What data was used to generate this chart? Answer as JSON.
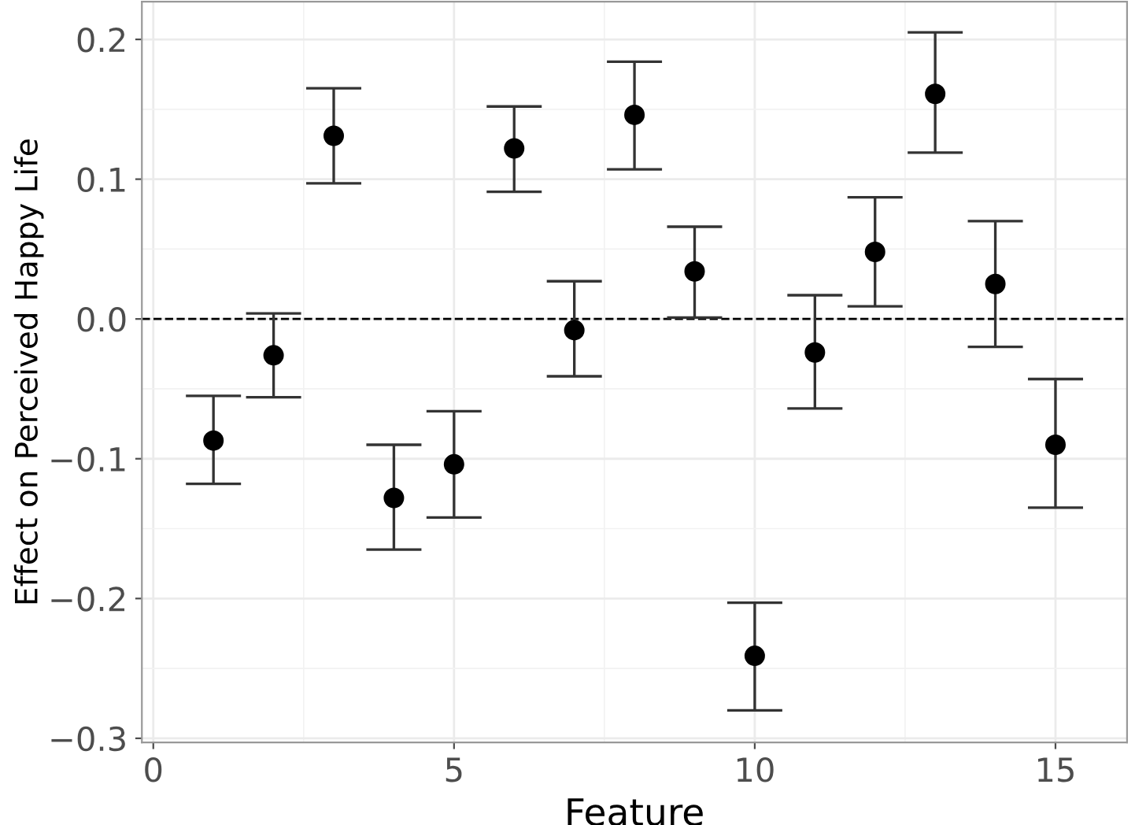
{
  "chart_data": {
    "type": "scatter",
    "xlabel": "Feature",
    "ylabel": "Effect on Perceived Happy Life",
    "x": [
      1,
      2,
      3,
      4,
      5,
      6,
      7,
      8,
      9,
      10,
      11,
      12,
      13,
      14,
      15
    ],
    "values": [
      -0.087,
      -0.026,
      0.131,
      -0.128,
      -0.104,
      0.122,
      -0.008,
      0.146,
      0.034,
      -0.241,
      -0.024,
      0.048,
      0.161,
      0.025,
      -0.09
    ],
    "errors": [
      [
        -0.118,
        -0.055
      ],
      [
        -0.056,
        0.004
      ],
      [
        0.097,
        0.165
      ],
      [
        -0.165,
        -0.09
      ],
      [
        -0.142,
        -0.066
      ],
      [
        0.091,
        0.152
      ],
      [
        -0.041,
        0.027
      ],
      [
        0.107,
        0.184
      ],
      [
        0.001,
        0.066
      ],
      [
        -0.28,
        -0.203
      ],
      [
        -0.064,
        0.017
      ],
      [
        0.009,
        0.087
      ],
      [
        0.119,
        0.205
      ],
      [
        -0.02,
        0.07
      ],
      [
        -0.135,
        -0.043
      ]
    ],
    "color": "#000000",
    "marker": "circle",
    "xlim": [
      -0.19,
      16.19
    ],
    "ylim": [
      -0.303,
      0.227
    ],
    "xticks": [
      0,
      5,
      10,
      15
    ],
    "yticks": [
      {
        "value": -0.3,
        "label": "−0.3"
      },
      {
        "value": -0.2,
        "label": "−0.2"
      },
      {
        "value": -0.1,
        "label": "−0.1"
      },
      {
        "value": 0.0,
        "label": "0.0"
      },
      0.1,
      0.2
    ],
    "ref_lines": [
      {
        "axis": "y",
        "value": 0,
        "color": "#000000",
        "line_style": "dashed"
      }
    ],
    "grid": true
  }
}
